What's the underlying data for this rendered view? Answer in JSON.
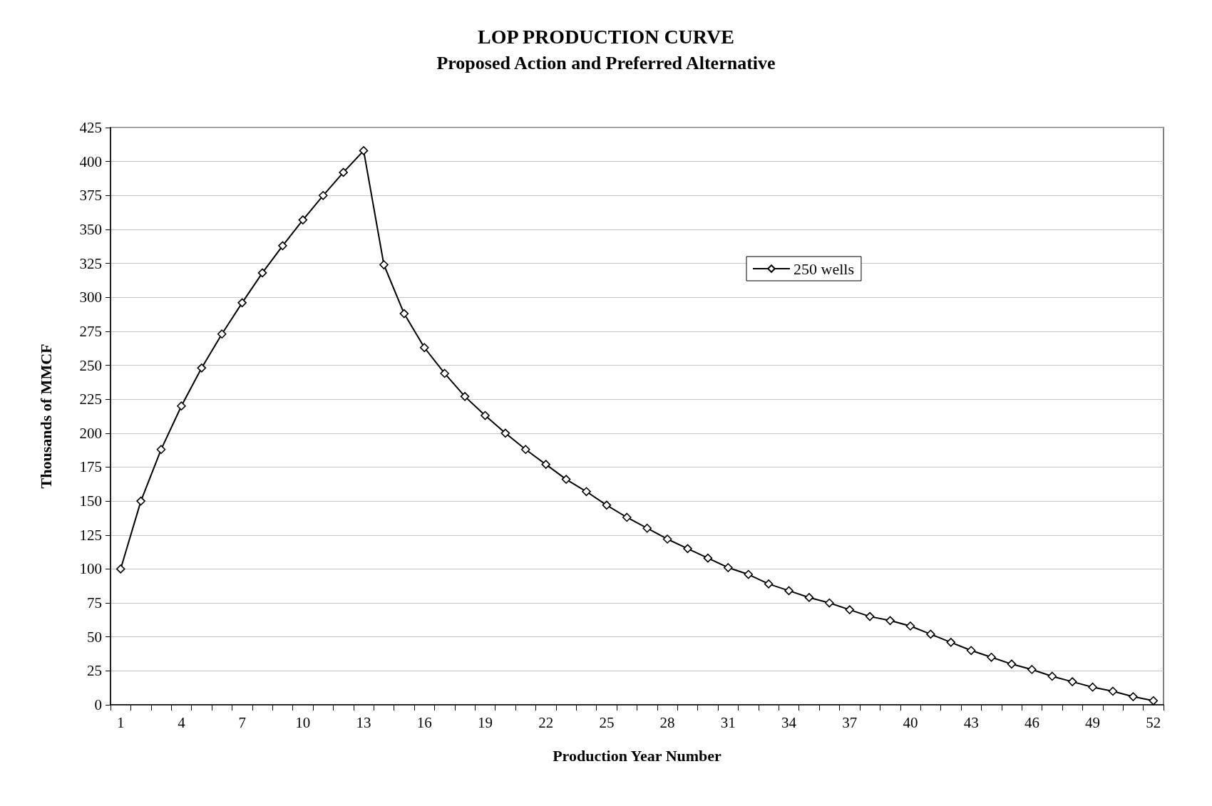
{
  "chart_data": {
    "type": "line",
    "title": "LOP PRODUCTION CURVE",
    "subtitle": "Proposed Action and Preferred Alternative",
    "xlabel": "Production Year Number",
    "ylabel": "Thousands of MMCF",
    "categories": [
      "1",
      null,
      null,
      "4",
      null,
      null,
      "7",
      null,
      null,
      "10",
      null,
      null,
      "13",
      null,
      null,
      "16",
      null,
      null,
      "19",
      null,
      null,
      "22",
      null,
      null,
      "25",
      null,
      null,
      "28",
      null,
      null,
      "31",
      null,
      null,
      "34",
      null,
      null,
      "37",
      null,
      null,
      "40",
      null,
      null,
      "43",
      null,
      null,
      "46",
      null,
      null,
      "49",
      null,
      null,
      "52"
    ],
    "series": [
      {
        "name": "250 wells",
        "color": "#000000",
        "values": [
          100,
          150,
          188,
          220,
          248,
          273,
          296,
          318,
          338,
          357,
          375,
          392,
          408,
          324,
          288,
          263,
          244,
          227,
          213,
          200,
          188,
          177,
          166,
          157,
          147,
          138,
          130,
          122,
          115,
          108,
          101,
          96,
          89,
          84,
          79,
          75,
          70,
          65,
          62,
          58,
          52,
          46,
          40,
          35,
          30,
          26,
          21,
          17,
          13,
          10,
          6,
          3
        ]
      }
    ],
    "ylim": [
      0,
      425
    ],
    "yticks": [
      0,
      25,
      50,
      75,
      100,
      125,
      150,
      175,
      200,
      225,
      250,
      275,
      300,
      325,
      350,
      375,
      400,
      425
    ],
    "grid": "y",
    "legend": "top right",
    "marker": "diamond",
    "line_style": "solid"
  }
}
